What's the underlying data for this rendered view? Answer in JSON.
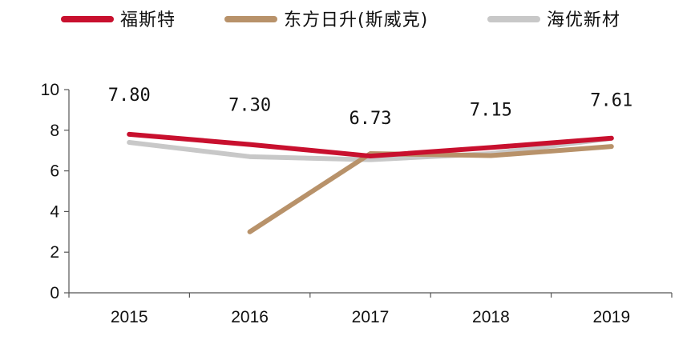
{
  "chart_data": {
    "type": "line",
    "title": "",
    "xlabel": "",
    "ylabel": "",
    "ylim": [
      0,
      10
    ],
    "yticks": [
      "0",
      "2",
      "4",
      "6",
      "8",
      "10"
    ],
    "categories": [
      "2015",
      "2016",
      "2017",
      "2018",
      "2019"
    ],
    "series": [
      {
        "name": "福斯特",
        "color": "#c8102e",
        "values": [
          7.8,
          7.3,
          6.73,
          7.15,
          7.61
        ]
      },
      {
        "name": "东方日升(斯威克)",
        "color": "#b8926a",
        "values": [
          null,
          3.0,
          6.85,
          6.75,
          7.2
        ]
      },
      {
        "name": "海优新材",
        "color": "#c8c8c8",
        "values": [
          7.4,
          6.7,
          6.55,
          6.85,
          7.6
        ]
      }
    ],
    "data_labels": [
      "7.80",
      "7.30",
      "6.73",
      "7.15",
      "7.61"
    ],
    "legend_position": "top",
    "grid": false
  }
}
